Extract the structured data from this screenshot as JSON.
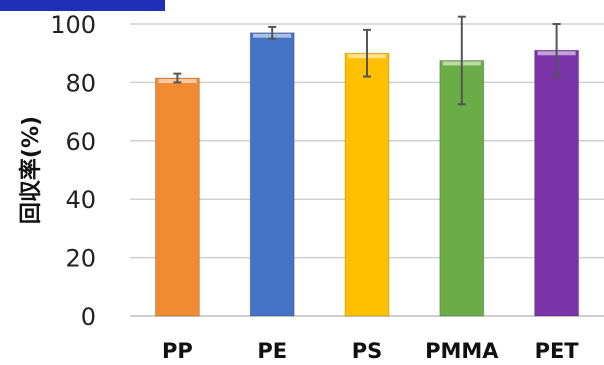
{
  "chart_data": {
    "type": "bar",
    "categories": [
      "PP",
      "PE",
      "PS",
      "PMMA",
      "PET"
    ],
    "values": [
      81.5,
      97,
      90,
      87.5,
      91
    ],
    "error": [
      1.5,
      2,
      8,
      15,
      9
    ],
    "colors": [
      "#f08a33",
      "#4472c4",
      "#ffc000",
      "#6aac46",
      "#7a33a8"
    ],
    "ylabel": "回収率(%)",
    "xlabel": "",
    "ylim": [
      0,
      100
    ],
    "yticks": [
      0,
      20,
      40,
      60,
      80,
      100
    ],
    "grid": true
  }
}
